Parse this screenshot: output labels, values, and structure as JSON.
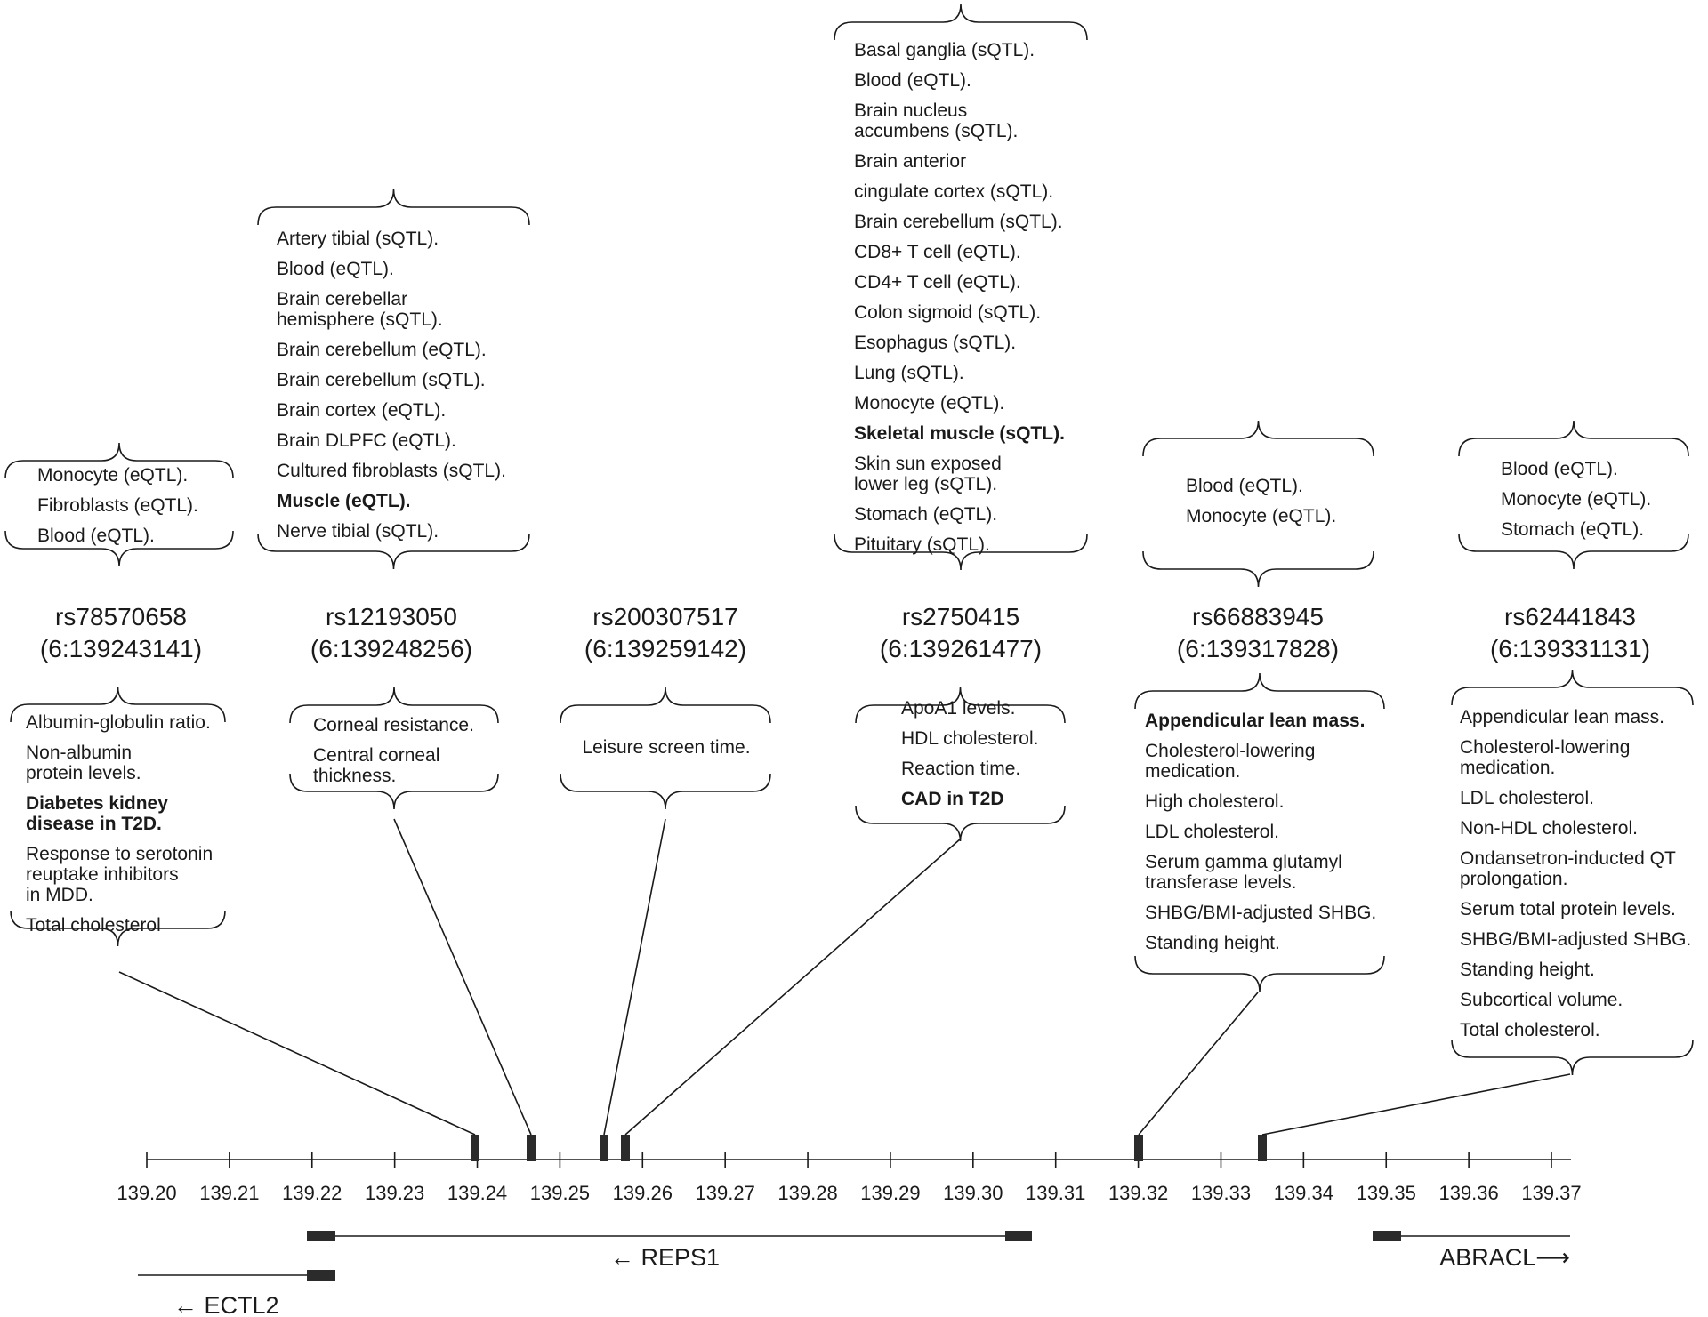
{
  "axis": {
    "ticks": [
      "139.20",
      "139.21",
      "139.22",
      "139.23",
      "139.24",
      "139.25",
      "139.26",
      "139.27",
      "139.28",
      "139.29",
      "139.30",
      "139.31",
      "139.32",
      "139.33",
      "139.34",
      "139.35",
      "139.36",
      "139.37"
    ]
  },
  "snps": [
    {
      "id": "rs78570658",
      "position": "(6:139243141)",
      "qtl": [
        {
          "text": "Monocyte (eQTL)."
        },
        {
          "text": "Fibroblasts (eQTL)."
        },
        {
          "text": "Blood (eQTL)."
        }
      ],
      "traits": [
        {
          "text": "Albumin-globulin ratio."
        },
        {
          "text": "Non-albumin\nprotein levels."
        },
        {
          "text": "Diabetes kidney\ndisease in T2D.",
          "bold": true
        },
        {
          "text": "Response to serotonin\nreuptake inhibitors\nin MDD."
        },
        {
          "text": "Total cholesterol"
        }
      ]
    },
    {
      "id": "rs12193050",
      "position": "(6:139248256)",
      "qtl": [
        {
          "text": "Artery tibial (sQTL)."
        },
        {
          "text": "Blood (eQTL)."
        },
        {
          "text": "Brain cerebellar\nhemisphere (sQTL)."
        },
        {
          "text": "Brain cerebellum (eQTL)."
        },
        {
          "text": "Brain cerebellum (sQTL)."
        },
        {
          "text": "Brain cortex (eQTL)."
        },
        {
          "text": "Brain DLPFC (eQTL)."
        },
        {
          "text": "Cultured fibroblasts (sQTL)."
        },
        {
          "text": "Muscle (eQTL).",
          "bold": true
        },
        {
          "text": "Nerve tibial (sQTL)."
        }
      ],
      "traits": [
        {
          "text": "Corneal resistance."
        },
        {
          "text": "Central corneal\nthickness."
        }
      ]
    },
    {
      "id": "rs200307517",
      "position": "(6:139259142)",
      "qtl": [],
      "traits": [
        {
          "text": "Leisure screen time."
        }
      ]
    },
    {
      "id": "rs2750415",
      "position": "(6:139261477)",
      "qtl": [
        {
          "text": "Basal ganglia (sQTL)."
        },
        {
          "text": "Blood (eQTL)."
        },
        {
          "text": "Brain nucleus\naccumbens (sQTL)."
        },
        {
          "text": "Brain anterior"
        },
        {
          "text": "cingulate cortex (sQTL)."
        },
        {
          "text": "Brain cerebellum (sQTL)."
        },
        {
          "text": "CD8+ T cell (eQTL)."
        },
        {
          "text": "CD4+ T cell (eQTL)."
        },
        {
          "text": "Colon sigmoid (sQTL)."
        },
        {
          "text": "Esophagus (sQTL)."
        },
        {
          "text": "Lung (sQTL)."
        },
        {
          "text": "Monocyte (eQTL)."
        },
        {
          "text": "Skeletal muscle (sQTL).",
          "bold": true
        },
        {
          "text": "Skin sun exposed\nlower leg (sQTL)."
        },
        {
          "text": "Stomach (eQTL)."
        },
        {
          "text": "Pituitary (sQTL)."
        }
      ],
      "traits": [
        {
          "text": "ApoA1 levels."
        },
        {
          "text": "HDL cholesterol."
        },
        {
          "text": "Reaction time."
        },
        {
          "text": "CAD in T2D",
          "bold": true
        }
      ]
    },
    {
      "id": "rs66883945",
      "position": "(6:139317828)",
      "qtl": [
        {
          "text": "Blood (eQTL)."
        },
        {
          "text": "Monocyte (eQTL)."
        }
      ],
      "traits": [
        {
          "text": "Appendicular lean mass.",
          "bold": true
        },
        {
          "text": "Cholesterol-lowering\nmedication."
        },
        {
          "text": "High cholesterol."
        },
        {
          "text": "LDL cholesterol."
        },
        {
          "text": "Serum gamma glutamyl\ntransferase levels."
        },
        {
          "text": "SHBG/BMI-adjusted SHBG."
        },
        {
          "text": "Standing height."
        }
      ]
    },
    {
      "id": "rs62441843",
      "position": "(6:139331131)",
      "qtl": [
        {
          "text": "Blood (eQTL)."
        },
        {
          "text": "Monocyte (eQTL)."
        },
        {
          "text": "Stomach (eQTL)."
        }
      ],
      "traits": [
        {
          "text": "Appendicular lean mass."
        },
        {
          "text": "Cholesterol-lowering\nmedication."
        },
        {
          "text": "LDL cholesterol."
        },
        {
          "text": "Non-HDL cholesterol."
        },
        {
          "text": "Ondansetron-inducted QT\nprolongation."
        },
        {
          "text": "Serum total protein levels."
        },
        {
          "text": "SHBG/BMI-adjusted SHBG."
        },
        {
          "text": "Standing height."
        },
        {
          "text": "Subcortical volume."
        },
        {
          "text": "Total cholesterol."
        }
      ]
    }
  ],
  "genes": [
    {
      "name": "REPS1",
      "arrow": "←",
      "direction": "reverse"
    },
    {
      "name": "ABRACL",
      "arrow": "⟶",
      "direction": "forward"
    },
    {
      "name": "ECTL2",
      "arrow": "←",
      "direction": "reverse"
    }
  ]
}
